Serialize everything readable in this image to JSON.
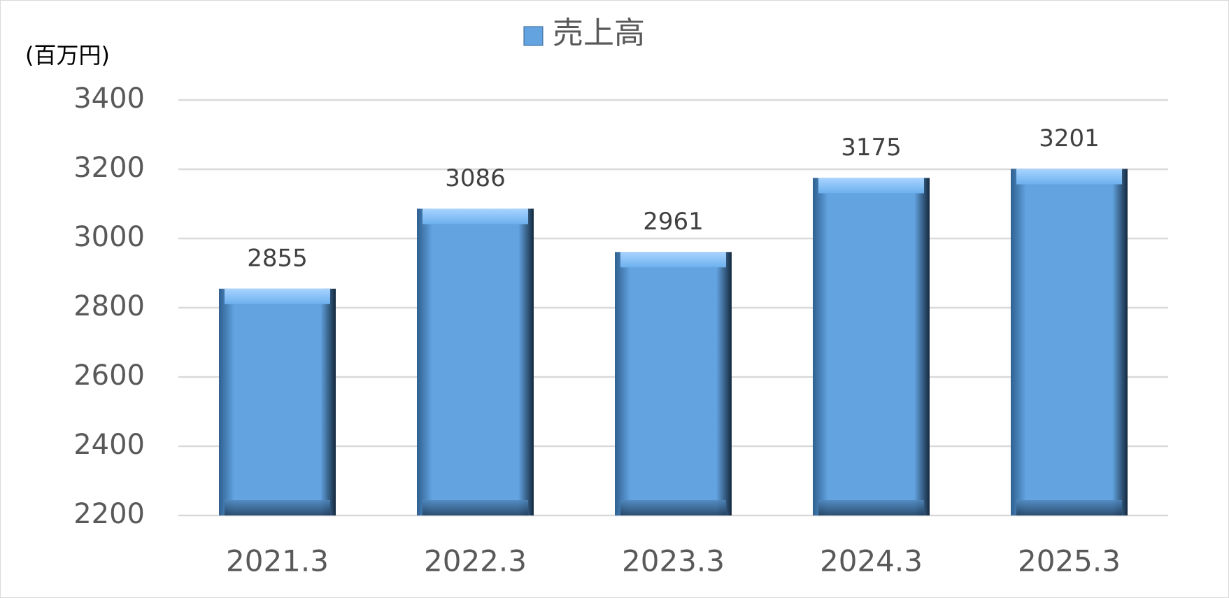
{
  "chart_data": {
    "type": "bar",
    "y_axis_label": "(百万円)",
    "categories": [
      "2021.3",
      "2022.3",
      "2023.3",
      "2024.3",
      "2025.3"
    ],
    "series": [
      {
        "name": "売上高",
        "color": "#62a3e0",
        "values": [
          2855,
          3086,
          2961,
          3175,
          3201
        ]
      }
    ],
    "ylim": [
      2200,
      3400
    ],
    "yticks": [
      2200,
      2400,
      2600,
      2800,
      3000,
      3200,
      3400
    ],
    "grid": true,
    "legend": "top",
    "data_labels": true
  }
}
